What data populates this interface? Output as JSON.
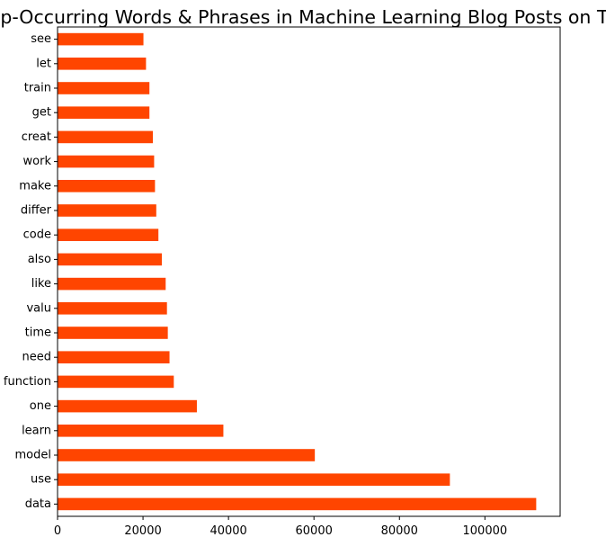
{
  "chart_data": {
    "type": "bar",
    "orientation": "horizontal",
    "title": "Top-Occurring Words & Phrases in Machine Learning Blog Posts on TDS",
    "xlabel": "",
    "ylabel": "",
    "categories": [
      "data",
      "use",
      "model",
      "learn",
      "one",
      "function",
      "need",
      "time",
      "valu",
      "like",
      "also",
      "code",
      "differ",
      "make",
      "work",
      "creat",
      "get",
      "train",
      "let",
      "see"
    ],
    "values": [
      112000,
      91800,
      60200,
      38800,
      32600,
      27200,
      26200,
      25800,
      25600,
      25300,
      24400,
      23600,
      23100,
      22800,
      22600,
      22300,
      21500,
      21500,
      20700,
      20100
    ],
    "xlim": [
      0,
      117600
    ],
    "x_ticks": [
      0,
      20000,
      40000,
      60000,
      80000,
      100000
    ],
    "x_tick_labels": [
      "0",
      "20000",
      "40000",
      "60000",
      "80000",
      "100000"
    ],
    "bar_color": "#ff4500",
    "grid": false,
    "legend": "none"
  }
}
